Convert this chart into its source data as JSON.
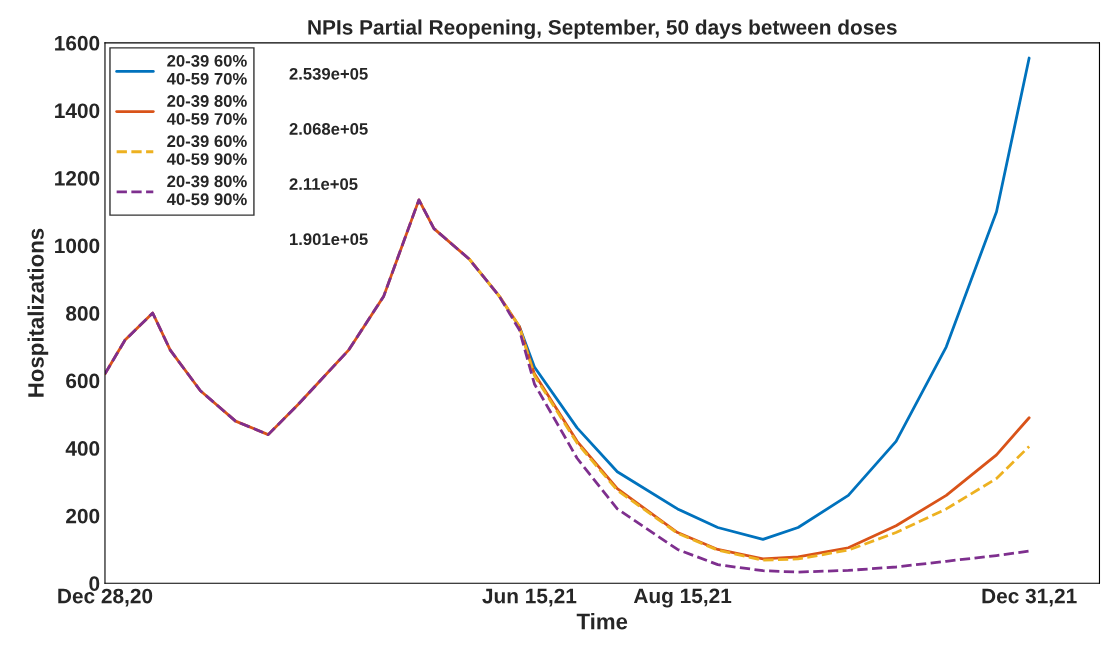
{
  "chart_data": {
    "type": "line",
    "title": "NPIs Partial Reopening, September, 50 days between doses",
    "xlabel": "Time",
    "ylabel": "Hospitalizations",
    "x": [
      "2020-12-28",
      "2021-01-05",
      "2021-01-16",
      "2021-01-23",
      "2021-02-04",
      "2021-02-18",
      "2021-03-03",
      "2021-03-15",
      "2021-04-04",
      "2021-04-18",
      "2021-05-02",
      "2021-05-08",
      "2021-05-22",
      "2021-06-03",
      "2021-06-11",
      "2021-06-17",
      "2021-07-04",
      "2021-07-20",
      "2021-08-13",
      "2021-08-29",
      "2021-09-16",
      "2021-09-30",
      "2021-10-20",
      "2021-11-08",
      "2021-11-28",
      "2021-12-18",
      "2021-12-31"
    ],
    "series": [
      {
        "name": "20-39 60%\n40-59 70%",
        "color": "#0072bd",
        "line_style": "solid",
        "values": [
          null,
          null,
          null,
          null,
          null,
          null,
          null,
          null,
          null,
          null,
          null,
          null,
          null,
          null,
          760,
          640,
          460,
          330,
          220,
          165,
          130,
          165,
          260,
          420,
          700,
          1100,
          1555
        ]
      },
      {
        "name": "20-39 80%\n40-59 70%",
        "color": "#d95319",
        "line_style": "solid",
        "values": [
          620,
          720,
          800,
          690,
          570,
          480,
          440,
          530,
          690,
          850,
          1135,
          1050,
          960,
          850,
          760,
          620,
          420,
          280,
          150,
          100,
          72,
          78,
          105,
          170,
          260,
          380,
          490
        ]
      },
      {
        "name": "20-39 60%\n40-59 90%",
        "color": "#edb120",
        "line_style": "dashed",
        "values": [
          null,
          null,
          null,
          null,
          null,
          null,
          null,
          null,
          null,
          null,
          null,
          null,
          960,
          850,
          760,
          615,
          415,
          275,
          148,
          98,
          68,
          72,
          98,
          150,
          220,
          310,
          405
        ]
      },
      {
        "name": "20-39 80%\n40-59 90%",
        "color": "#7e2f8e",
        "line_style": "dashed",
        "values": [
          620,
          720,
          800,
          690,
          570,
          480,
          440,
          530,
          690,
          850,
          1135,
          1050,
          960,
          850,
          750,
          590,
          370,
          220,
          100,
          55,
          37,
          33,
          38,
          48,
          65,
          82,
          95
        ]
      }
    ],
    "annotations": [
      "2.539e+05",
      "2.068e+05",
      "2.11e+05",
      "1.901e+05"
    ],
    "xlim": [
      "2020-12-28",
      "2022-01-28"
    ],
    "xticks": [
      {
        "value": "2020-12-28",
        "label": "Dec 28,20"
      },
      {
        "value": "2021-06-15",
        "label": "Jun 15,21"
      },
      {
        "value": "2021-08-15",
        "label": "Aug 15,21"
      },
      {
        "value": "2021-12-31",
        "label": "Dec 31,21"
      }
    ],
    "ylim": [
      0,
      1600
    ],
    "yticks": [
      0,
      200,
      400,
      600,
      800,
      1000,
      1200,
      1400,
      1600
    ],
    "legend": "top left",
    "grid": false
  }
}
